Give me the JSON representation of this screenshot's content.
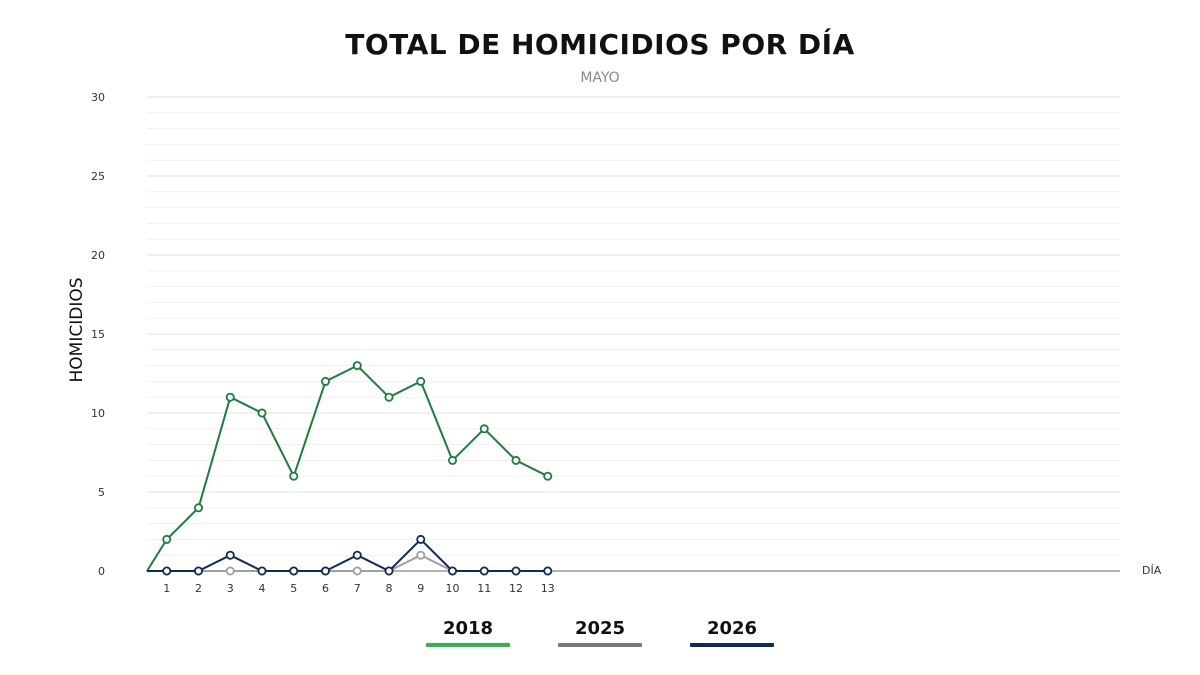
{
  "chart_data": {
    "type": "line",
    "title": "TOTAL DE HOMICIDIOS POR DÍA",
    "subtitle": "MAYO",
    "xlabel": "DÍA",
    "ylabel": "HOMICIDIOS",
    "ylim": [
      0,
      30
    ],
    "yticks": [
      "0",
      "5",
      "10",
      "15",
      "20",
      "25",
      "30"
    ],
    "x": [
      1,
      2,
      3,
      4,
      5,
      6,
      7,
      8,
      9,
      10,
      11,
      12,
      13
    ],
    "grid": true,
    "legend_position": "bottom-left",
    "series": [
      {
        "name": "2018",
        "color": "#1a7f3c",
        "legend_color": "#34b34a",
        "values": [
          2,
          4,
          11,
          10,
          6,
          12,
          13,
          11,
          12,
          7,
          9,
          7,
          6
        ]
      },
      {
        "name": "2025",
        "color": "#a0a0a0",
        "legend_color": "#7a7a7a",
        "values": [
          0,
          0,
          0,
          0,
          0,
          0,
          0,
          0,
          1,
          0,
          0,
          0,
          0
        ]
      },
      {
        "name": "2026",
        "color": "#0f2a5c",
        "legend_color": "#0f2a5c",
        "values": [
          0,
          0,
          1,
          0,
          0,
          0,
          1,
          0,
          2,
          0,
          0,
          0,
          0
        ]
      }
    ]
  }
}
